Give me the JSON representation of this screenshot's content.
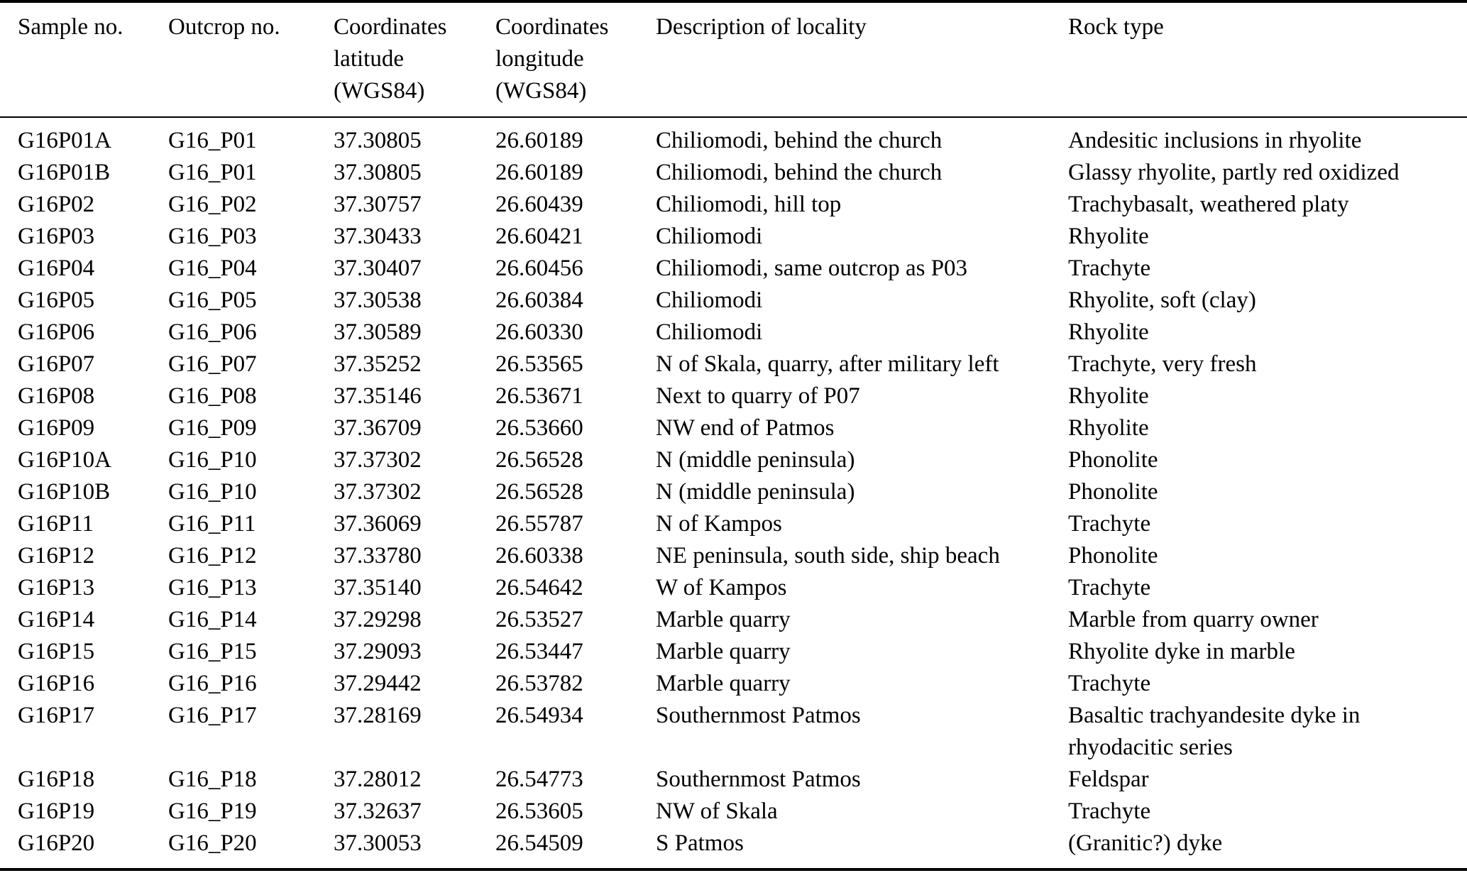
{
  "colors": {
    "background": "#ffffff",
    "text": "#000000",
    "rule": "#000000"
  },
  "table": {
    "columns": [
      {
        "key": "sample_no",
        "label": "Sample no."
      },
      {
        "key": "outcrop_no",
        "label": "Outcrop no."
      },
      {
        "key": "latitude",
        "label": "Coordinates\nlatitude\n(WGS84)"
      },
      {
        "key": "longitude",
        "label": "Coordinates\nlongitude\n(WGS84)"
      },
      {
        "key": "description",
        "label": "Description of locality"
      },
      {
        "key": "rock_type",
        "label": "Rock type"
      }
    ],
    "rows": [
      {
        "sample_no": "G16P01A",
        "outcrop_no": "G16_P01",
        "latitude": "37.30805",
        "longitude": "26.60189",
        "description": "Chiliomodi, behind the church",
        "rock_type": "Andesitic inclusions in rhyolite"
      },
      {
        "sample_no": "G16P01B",
        "outcrop_no": "G16_P01",
        "latitude": "37.30805",
        "longitude": "26.60189",
        "description": "Chiliomodi, behind the church",
        "rock_type": "Glassy rhyolite, partly red oxidized"
      },
      {
        "sample_no": "G16P02",
        "outcrop_no": "G16_P02",
        "latitude": "37.30757",
        "longitude": "26.60439",
        "description": "Chiliomodi, hill top",
        "rock_type": "Trachybasalt, weathered platy"
      },
      {
        "sample_no": "G16P03",
        "outcrop_no": "G16_P03",
        "latitude": "37.30433",
        "longitude": "26.60421",
        "description": "Chiliomodi",
        "rock_type": "Rhyolite"
      },
      {
        "sample_no": "G16P04",
        "outcrop_no": "G16_P04",
        "latitude": "37.30407",
        "longitude": "26.60456",
        "description": "Chiliomodi, same outcrop as P03",
        "rock_type": "Trachyte"
      },
      {
        "sample_no": "G16P05",
        "outcrop_no": "G16_P05",
        "latitude": "37.30538",
        "longitude": "26.60384",
        "description": "Chiliomodi",
        "rock_type": "Rhyolite, soft (clay)"
      },
      {
        "sample_no": "G16P06",
        "outcrop_no": "G16_P06",
        "latitude": "37.30589",
        "longitude": "26.60330",
        "description": "Chiliomodi",
        "rock_type": "Rhyolite"
      },
      {
        "sample_no": "G16P07",
        "outcrop_no": "G16_P07",
        "latitude": "37.35252",
        "longitude": "26.53565",
        "description": "N of Skala, quarry, after military left",
        "rock_type": "Trachyte, very fresh"
      },
      {
        "sample_no": "G16P08",
        "outcrop_no": "G16_P08",
        "latitude": "37.35146",
        "longitude": "26.53671",
        "description": "Next to quarry of P07",
        "rock_type": "Rhyolite"
      },
      {
        "sample_no": "G16P09",
        "outcrop_no": "G16_P09",
        "latitude": "37.36709",
        "longitude": "26.53660",
        "description": "NW end of Patmos",
        "rock_type": "Rhyolite"
      },
      {
        "sample_no": "G16P10A",
        "outcrop_no": "G16_P10",
        "latitude": "37.37302",
        "longitude": "26.56528",
        "description": "N (middle peninsula)",
        "rock_type": "Phonolite"
      },
      {
        "sample_no": "G16P10B",
        "outcrop_no": "G16_P10",
        "latitude": "37.37302",
        "longitude": "26.56528",
        "description": "N (middle peninsula)",
        "rock_type": "Phonolite"
      },
      {
        "sample_no": "G16P11",
        "outcrop_no": "G16_P11",
        "latitude": "37.36069",
        "longitude": "26.55787",
        "description": "N of Kampos",
        "rock_type": "Trachyte"
      },
      {
        "sample_no": "G16P12",
        "outcrop_no": "G16_P12",
        "latitude": "37.33780",
        "longitude": "26.60338",
        "description": "NE peninsula, south side, ship beach",
        "rock_type": "Phonolite"
      },
      {
        "sample_no": "G16P13",
        "outcrop_no": "G16_P13",
        "latitude": "37.35140",
        "longitude": "26.54642",
        "description": "W of Kampos",
        "rock_type": "Trachyte"
      },
      {
        "sample_no": "G16P14",
        "outcrop_no": "G16_P14",
        "latitude": "37.29298",
        "longitude": "26.53527",
        "description": "Marble quarry",
        "rock_type": "Marble from quarry owner"
      },
      {
        "sample_no": "G16P15",
        "outcrop_no": "G16_P15",
        "latitude": "37.29093",
        "longitude": "26.53447",
        "description": "Marble quarry",
        "rock_type": "Rhyolite dyke in marble"
      },
      {
        "sample_no": "G16P16",
        "outcrop_no": "G16_P16",
        "latitude": "37.29442",
        "longitude": "26.53782",
        "description": "Marble quarry",
        "rock_type": "Trachyte"
      },
      {
        "sample_no": "G16P17",
        "outcrop_no": "G16_P17",
        "latitude": "37.28169",
        "longitude": "26.54934",
        "description": "Southernmost Patmos",
        "rock_type": "Basaltic trachyandesite dyke in rhyodacitic series"
      },
      {
        "sample_no": "G16P18",
        "outcrop_no": "G16_P18",
        "latitude": "37.28012",
        "longitude": "26.54773",
        "description": "Southernmost Patmos",
        "rock_type": "Feldspar"
      },
      {
        "sample_no": "G16P19",
        "outcrop_no": "G16_P19",
        "latitude": "37.32637",
        "longitude": "26.53605",
        "description": "NW of Skala",
        "rock_type": "Trachyte"
      },
      {
        "sample_no": "G16P20",
        "outcrop_no": "G16_P20",
        "latitude": "37.30053",
        "longitude": "26.54509",
        "description": "S Patmos",
        "rock_type": "(Granitic?) dyke"
      }
    ]
  }
}
